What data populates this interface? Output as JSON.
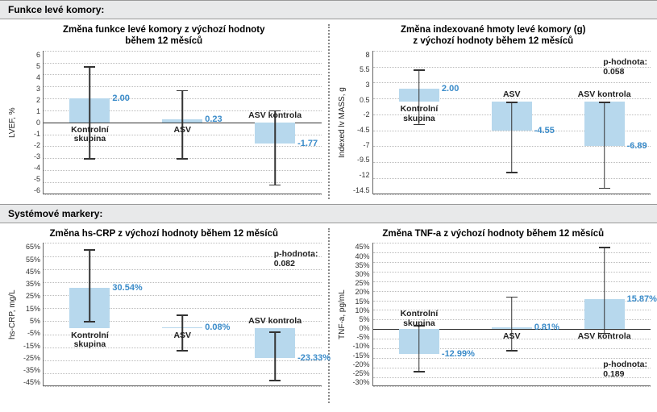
{
  "section1_title": "Funkce levé komory:",
  "section2_title": "Systémové markery:",
  "colors": {
    "bar_fill": "#b7d8ed",
    "grid": "#bbbbbb",
    "axis": "#666666",
    "value_text": "#3a8bc9",
    "header_bg": "#e8e9ea"
  },
  "charts": [
    {
      "id": "lvef",
      "title_line1": "Změna funkce levé komory z výchozí hodnoty",
      "title_line2": "během 12 měsíců",
      "ylabel": "LVEF, %",
      "ymin": -6,
      "ymax": 6,
      "ystep": 1,
      "percent_ticks": false,
      "bars": [
        {
          "cat1": "Kontrolní",
          "cat2": "skupina",
          "value": 2.0,
          "label": "2.00",
          "err_lo": -3.0,
          "err_hi": 4.7
        },
        {
          "cat1": "ASV",
          "cat2": "",
          "value": 0.23,
          "label": "0.23",
          "err_lo": -3.0,
          "err_hi": 2.7
        },
        {
          "cat1": "ASV kontrola",
          "cat2": "",
          "value": -1.77,
          "label": "-1.77",
          "err_lo": -5.2,
          "err_hi": 1.0
        }
      ],
      "pvalue": null
    },
    {
      "id": "lvmass",
      "title_line1": "Změna indexované hmoty levé komory (g)",
      "title_line2": "z výchozí hodnoty během 12 měsíců",
      "ylabel": "Indexed lv MASS, g",
      "ymin": -14.5,
      "ymax": 8,
      "ystep": 2.5,
      "percent_ticks": false,
      "bars": [
        {
          "cat1": "Kontrolní",
          "cat2": "skupina",
          "value": 2.0,
          "label": "2.00",
          "err_lo": -3.5,
          "err_hi": 5.0
        },
        {
          "cat1": "ASV",
          "cat2": "",
          "value": -4.55,
          "label": "-4.55",
          "err_lo": -11.0,
          "err_hi": 0.0
        },
        {
          "cat1": "ASV kontrola",
          "cat2": "",
          "value": -6.89,
          "label": "-6.89",
          "err_lo": -13.5,
          "err_hi": 0.0
        }
      ],
      "pvalue": {
        "label": "p-hodnota:",
        "value": "0.058",
        "pos": "top-right"
      }
    },
    {
      "id": "hscrp",
      "title_line1": "Změna hs-CRP z výchozí hodnoty během 12 měsíců",
      "title_line2": "",
      "ylabel": "hs-CRP, mg/L",
      "ymin": -45,
      "ymax": 65,
      "ystep": 10,
      "percent_ticks": true,
      "bars": [
        {
          "cat1": "Kontrolní",
          "cat2": "skupina",
          "value": 30.54,
          "label": "30.54%",
          "err_lo": 5.0,
          "err_hi": 60.0
        },
        {
          "cat1": "ASV",
          "cat2": "",
          "value": 0.08,
          "label": "0.08%",
          "err_lo": -17.0,
          "err_hi": 10.0
        },
        {
          "cat1": "ASV kontrola",
          "cat2": "",
          "value": -23.33,
          "label": "-23.33%",
          "err_lo": -40.0,
          "err_hi": -3.0
        }
      ],
      "pvalue": {
        "label": "p-hodnota:",
        "value": "0.082",
        "pos": "top-right"
      }
    },
    {
      "id": "tnfa",
      "title_line1": "Změna TNF-a z výchozí hodnoty během 12 měsíců",
      "title_line2": "",
      "ylabel": "TNF-a, pg/mL",
      "ymin": -30,
      "ymax": 45,
      "ystep": 5,
      "percent_ticks": true,
      "bars": [
        {
          "cat1": "Kontrolní",
          "cat2": "skupina",
          "value": -12.99,
          "label": "-12.99%",
          "err_lo": -22.0,
          "err_hi": 2.0
        },
        {
          "cat1": "ASV",
          "cat2": "",
          "value": 0.81,
          "label": "0.81%",
          "err_lo": -11.0,
          "err_hi": 17.0
        },
        {
          "cat1": "ASV kontrola",
          "cat2": "",
          "value": 15.87,
          "label": "15.87%",
          "err_lo": -2.0,
          "err_hi": 43.0
        }
      ],
      "pvalue": {
        "label": "p-hodnota:",
        "value": "0.189",
        "pos": "bottom-right"
      }
    }
  ]
}
